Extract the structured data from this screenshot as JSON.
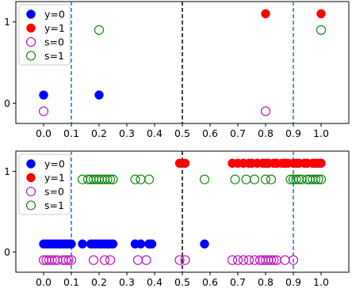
{
  "chart_data": [
    {
      "type": "scatter",
      "title": "",
      "xlabel": "",
      "ylabel": "",
      "xlim": [
        -0.1,
        1.1
      ],
      "ylim": [
        -0.25,
        1.25
      ],
      "x_ticks": [
        "0.0",
        "0.1",
        "0.2",
        "0.3",
        "0.4",
        "0.5",
        "0.6",
        "0.7",
        "0.8",
        "0.9",
        "1.0"
      ],
      "y_ticks": [
        "0",
        "1"
      ],
      "grid": false,
      "legend_position": "upper-left",
      "vertical_lines": [
        {
          "x": 0.1,
          "style": "dashed",
          "color": "#1f77b4"
        },
        {
          "x": 0.5,
          "style": "dashed",
          "color": "#000000"
        },
        {
          "x": 0.9,
          "style": "dashed",
          "color": "#1f77b4"
        }
      ],
      "series": [
        {
          "name": "y=0",
          "marker": "filled-circle",
          "color": "#0000ff",
          "points": [
            [
              0.0,
              0.1
            ],
            [
              0.2,
              0.1
            ]
          ]
        },
        {
          "name": "y=1",
          "marker": "filled-circle",
          "color": "#ff0000",
          "points": [
            [
              0.8,
              1.1
            ],
            [
              1.0,
              1.1
            ]
          ]
        },
        {
          "name": "s=0",
          "marker": "open-circle",
          "color": "#c000c0",
          "points": [
            [
              0.0,
              -0.1
            ],
            [
              0.8,
              -0.1
            ]
          ]
        },
        {
          "name": "s=1",
          "marker": "open-circle",
          "color": "#008000",
          "points": [
            [
              0.2,
              0.9
            ],
            [
              1.0,
              0.9
            ]
          ]
        }
      ]
    },
    {
      "type": "scatter",
      "title": "",
      "xlabel": "",
      "ylabel": "",
      "xlim": [
        -0.1,
        1.1
      ],
      "ylim": [
        -0.25,
        1.25
      ],
      "x_ticks": [
        "0.0",
        "0.1",
        "0.2",
        "0.3",
        "0.4",
        "0.5",
        "0.6",
        "0.7",
        "0.8",
        "0.9",
        "1.0"
      ],
      "y_ticks": [
        "0",
        "1"
      ],
      "grid": false,
      "legend_position": "upper-left",
      "vertical_lines": [
        {
          "x": 0.1,
          "style": "dashed",
          "color": "#1f77b4"
        },
        {
          "x": 0.5,
          "style": "dashed",
          "color": "#000000"
        },
        {
          "x": 0.9,
          "style": "dashed",
          "color": "#1f77b4"
        }
      ],
      "series": [
        {
          "name": "y=0",
          "marker": "filled-circle",
          "color": "#0000ff",
          "points": [
            [
              0.0,
              0.1
            ],
            [
              0.01,
              0.1
            ],
            [
              0.02,
              0.1
            ],
            [
              0.03,
              0.1
            ],
            [
              0.04,
              0.1
            ],
            [
              0.05,
              0.1
            ],
            [
              0.06,
              0.1
            ],
            [
              0.07,
              0.1
            ],
            [
              0.08,
              0.1
            ],
            [
              0.09,
              0.1
            ],
            [
              0.1,
              0.1
            ],
            [
              0.14,
              0.1
            ],
            [
              0.17,
              0.1
            ],
            [
              0.18,
              0.1
            ],
            [
              0.19,
              0.1
            ],
            [
              0.2,
              0.1
            ],
            [
              0.21,
              0.1
            ],
            [
              0.22,
              0.1
            ],
            [
              0.23,
              0.1
            ],
            [
              0.24,
              0.1
            ],
            [
              0.25,
              0.1
            ],
            [
              0.33,
              0.1
            ],
            [
              0.35,
              0.1
            ],
            [
              0.38,
              0.1
            ],
            [
              0.39,
              0.1
            ],
            [
              0.58,
              0.1
            ]
          ]
        },
        {
          "name": "y=1",
          "marker": "filled-circle",
          "color": "#ff0000",
          "points": [
            [
              0.49,
              1.1
            ],
            [
              0.51,
              1.1
            ],
            [
              0.68,
              1.1
            ],
            [
              0.7,
              1.1
            ],
            [
              0.72,
              1.1
            ],
            [
              0.74,
              1.1
            ],
            [
              0.75,
              1.1
            ],
            [
              0.77,
              1.1
            ],
            [
              0.79,
              1.1
            ],
            [
              0.8,
              1.1
            ],
            [
              0.81,
              1.1
            ],
            [
              0.83,
              1.1
            ],
            [
              0.84,
              1.1
            ],
            [
              0.86,
              1.1
            ],
            [
              0.87,
              1.1
            ],
            [
              0.88,
              1.1
            ],
            [
              0.9,
              1.1
            ],
            [
              0.91,
              1.1
            ],
            [
              0.92,
              1.1
            ],
            [
              0.94,
              1.1
            ],
            [
              0.95,
              1.1
            ],
            [
              0.97,
              1.1
            ],
            [
              0.98,
              1.1
            ],
            [
              0.99,
              1.1
            ],
            [
              1.0,
              1.1
            ]
          ]
        },
        {
          "name": "s=0",
          "marker": "open-circle",
          "color": "#c000c0",
          "points": [
            [
              0.0,
              -0.1
            ],
            [
              0.01,
              -0.1
            ],
            [
              0.02,
              -0.1
            ],
            [
              0.03,
              -0.1
            ],
            [
              0.04,
              -0.1
            ],
            [
              0.05,
              -0.1
            ],
            [
              0.07,
              -0.1
            ],
            [
              0.08,
              -0.1
            ],
            [
              0.09,
              -0.1
            ],
            [
              0.1,
              -0.1
            ],
            [
              0.18,
              -0.1
            ],
            [
              0.22,
              -0.1
            ],
            [
              0.24,
              -0.1
            ],
            [
              0.34,
              -0.1
            ],
            [
              0.37,
              -0.1
            ],
            [
              0.49,
              -0.1
            ],
            [
              0.51,
              -0.1
            ],
            [
              0.68,
              -0.1
            ],
            [
              0.7,
              -0.1
            ],
            [
              0.72,
              -0.1
            ],
            [
              0.74,
              -0.1
            ],
            [
              0.76,
              -0.1
            ],
            [
              0.78,
              -0.1
            ],
            [
              0.79,
              -0.1
            ],
            [
              0.8,
              -0.1
            ],
            [
              0.81,
              -0.1
            ],
            [
              0.82,
              -0.1
            ],
            [
              0.83,
              -0.1
            ],
            [
              0.84,
              -0.1
            ],
            [
              0.87,
              -0.1
            ],
            [
              0.9,
              -0.1
            ]
          ]
        },
        {
          "name": "s=1",
          "marker": "open-circle",
          "color": "#008000",
          "points": [
            [
              0.14,
              0.9
            ],
            [
              0.16,
              0.9
            ],
            [
              0.17,
              0.9
            ],
            [
              0.18,
              0.9
            ],
            [
              0.19,
              0.9
            ],
            [
              0.2,
              0.9
            ],
            [
              0.21,
              0.9
            ],
            [
              0.22,
              0.9
            ],
            [
              0.23,
              0.9
            ],
            [
              0.24,
              0.9
            ],
            [
              0.25,
              0.9
            ],
            [
              0.33,
              0.9
            ],
            [
              0.35,
              0.9
            ],
            [
              0.38,
              0.9
            ],
            [
              0.58,
              0.9
            ],
            [
              0.69,
              0.9
            ],
            [
              0.73,
              0.9
            ],
            [
              0.76,
              0.9
            ],
            [
              0.8,
              0.9
            ],
            [
              0.82,
              0.9
            ],
            [
              0.89,
              0.9
            ],
            [
              0.9,
              0.9
            ],
            [
              0.91,
              0.9
            ],
            [
              0.92,
              0.9
            ],
            [
              0.93,
              0.9
            ],
            [
              0.95,
              0.9
            ],
            [
              0.96,
              0.9
            ],
            [
              0.97,
              0.9
            ],
            [
              0.98,
              0.9
            ],
            [
              0.99,
              0.9
            ],
            [
              1.0,
              0.9
            ]
          ]
        }
      ]
    }
  ]
}
